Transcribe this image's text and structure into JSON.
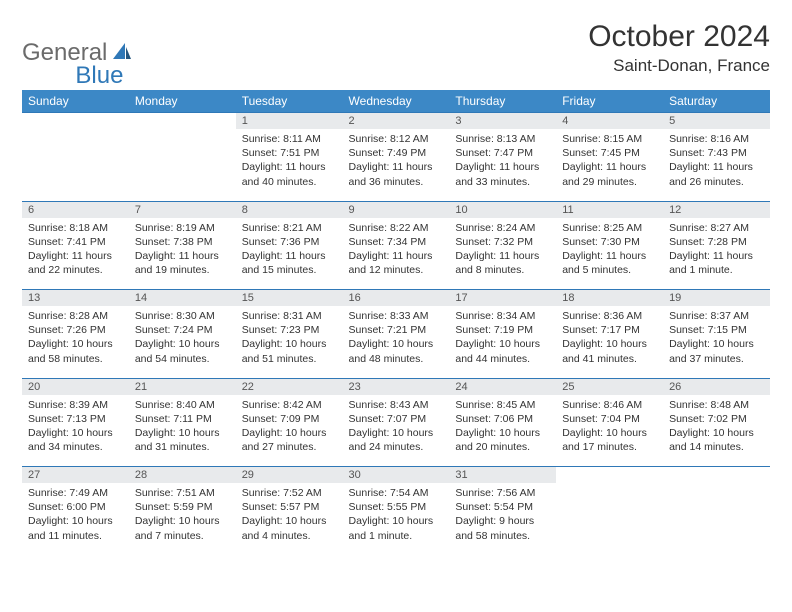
{
  "logo": {
    "part1": "General",
    "part2": "Blue"
  },
  "title": "October 2024",
  "location": "Saint-Donan, France",
  "day_headers": [
    "Sunday",
    "Monday",
    "Tuesday",
    "Wednesday",
    "Thursday",
    "Friday",
    "Saturday"
  ],
  "colors": {
    "header_bg": "#3c88c6",
    "daynum_bg": "#e8eaec",
    "rule": "#2f78b7",
    "logo_gray": "#6b6b6b",
    "logo_blue": "#2f78b7"
  },
  "weeks": [
    {
      "nums": [
        "",
        "",
        "1",
        "2",
        "3",
        "4",
        "5"
      ],
      "cells": [
        "",
        "",
        "Sunrise: 8:11 AM\nSunset: 7:51 PM\nDaylight: 11 hours and 40 minutes.",
        "Sunrise: 8:12 AM\nSunset: 7:49 PM\nDaylight: 11 hours and 36 minutes.",
        "Sunrise: 8:13 AM\nSunset: 7:47 PM\nDaylight: 11 hours and 33 minutes.",
        "Sunrise: 8:15 AM\nSunset: 7:45 PM\nDaylight: 11 hours and 29 minutes.",
        "Sunrise: 8:16 AM\nSunset: 7:43 PM\nDaylight: 11 hours and 26 minutes."
      ]
    },
    {
      "nums": [
        "6",
        "7",
        "8",
        "9",
        "10",
        "11",
        "12"
      ],
      "cells": [
        "Sunrise: 8:18 AM\nSunset: 7:41 PM\nDaylight: 11 hours and 22 minutes.",
        "Sunrise: 8:19 AM\nSunset: 7:38 PM\nDaylight: 11 hours and 19 minutes.",
        "Sunrise: 8:21 AM\nSunset: 7:36 PM\nDaylight: 11 hours and 15 minutes.",
        "Sunrise: 8:22 AM\nSunset: 7:34 PM\nDaylight: 11 hours and 12 minutes.",
        "Sunrise: 8:24 AM\nSunset: 7:32 PM\nDaylight: 11 hours and 8 minutes.",
        "Sunrise: 8:25 AM\nSunset: 7:30 PM\nDaylight: 11 hours and 5 minutes.",
        "Sunrise: 8:27 AM\nSunset: 7:28 PM\nDaylight: 11 hours and 1 minute."
      ]
    },
    {
      "nums": [
        "13",
        "14",
        "15",
        "16",
        "17",
        "18",
        "19"
      ],
      "cells": [
        "Sunrise: 8:28 AM\nSunset: 7:26 PM\nDaylight: 10 hours and 58 minutes.",
        "Sunrise: 8:30 AM\nSunset: 7:24 PM\nDaylight: 10 hours and 54 minutes.",
        "Sunrise: 8:31 AM\nSunset: 7:23 PM\nDaylight: 10 hours and 51 minutes.",
        "Sunrise: 8:33 AM\nSunset: 7:21 PM\nDaylight: 10 hours and 48 minutes.",
        "Sunrise: 8:34 AM\nSunset: 7:19 PM\nDaylight: 10 hours and 44 minutes.",
        "Sunrise: 8:36 AM\nSunset: 7:17 PM\nDaylight: 10 hours and 41 minutes.",
        "Sunrise: 8:37 AM\nSunset: 7:15 PM\nDaylight: 10 hours and 37 minutes."
      ]
    },
    {
      "nums": [
        "20",
        "21",
        "22",
        "23",
        "24",
        "25",
        "26"
      ],
      "cells": [
        "Sunrise: 8:39 AM\nSunset: 7:13 PM\nDaylight: 10 hours and 34 minutes.",
        "Sunrise: 8:40 AM\nSunset: 7:11 PM\nDaylight: 10 hours and 31 minutes.",
        "Sunrise: 8:42 AM\nSunset: 7:09 PM\nDaylight: 10 hours and 27 minutes.",
        "Sunrise: 8:43 AM\nSunset: 7:07 PM\nDaylight: 10 hours and 24 minutes.",
        "Sunrise: 8:45 AM\nSunset: 7:06 PM\nDaylight: 10 hours and 20 minutes.",
        "Sunrise: 8:46 AM\nSunset: 7:04 PM\nDaylight: 10 hours and 17 minutes.",
        "Sunrise: 8:48 AM\nSunset: 7:02 PM\nDaylight: 10 hours and 14 minutes."
      ]
    },
    {
      "nums": [
        "27",
        "28",
        "29",
        "30",
        "31",
        "",
        ""
      ],
      "cells": [
        "Sunrise: 7:49 AM\nSunset: 6:00 PM\nDaylight: 10 hours and 11 minutes.",
        "Sunrise: 7:51 AM\nSunset: 5:59 PM\nDaylight: 10 hours and 7 minutes.",
        "Sunrise: 7:52 AM\nSunset: 5:57 PM\nDaylight: 10 hours and 4 minutes.",
        "Sunrise: 7:54 AM\nSunset: 5:55 PM\nDaylight: 10 hours and 1 minute.",
        "Sunrise: 7:56 AM\nSunset: 5:54 PM\nDaylight: 9 hours and 58 minutes.",
        "",
        ""
      ]
    }
  ]
}
